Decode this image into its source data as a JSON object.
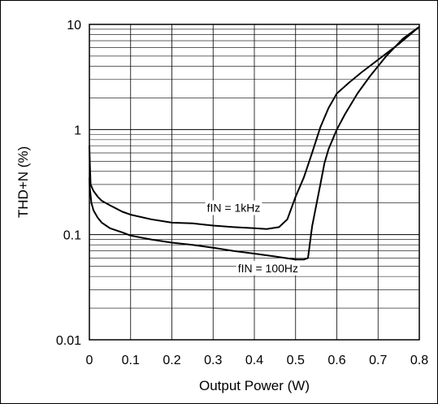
{
  "chart_data": {
    "type": "line",
    "title": "",
    "xlabel": "Output Power (W)",
    "ylabel": "THD+N (%)",
    "x_scale": "linear",
    "y_scale": "log",
    "xlim": [
      0,
      0.8
    ],
    "ylim": [
      0.01,
      10
    ],
    "x_ticks": [
      0,
      0.1,
      0.2,
      0.3,
      0.4,
      0.5,
      0.6,
      0.7,
      0.8
    ],
    "x_tick_labels": [
      "0",
      "0.1",
      "0.2",
      "0.3",
      "0.4",
      "0.5",
      "0.6",
      "0.7",
      "0.8"
    ],
    "y_ticks": [
      0.01,
      0.1,
      1,
      10
    ],
    "y_tick_labels": [
      "0.01",
      "0.1",
      "1",
      "10"
    ],
    "grid": true,
    "legend": "none",
    "series": [
      {
        "name": "fIN = 1kHz",
        "color": "#000000",
        "points": [
          [
            0.0,
            0.7
          ],
          [
            0.001,
            0.5
          ],
          [
            0.003,
            0.3
          ],
          [
            0.01,
            0.26
          ],
          [
            0.02,
            0.23
          ],
          [
            0.03,
            0.21
          ],
          [
            0.05,
            0.19
          ],
          [
            0.08,
            0.165
          ],
          [
            0.1,
            0.155
          ],
          [
            0.15,
            0.14
          ],
          [
            0.2,
            0.13
          ],
          [
            0.25,
            0.128
          ],
          [
            0.3,
            0.122
          ],
          [
            0.35,
            0.118
          ],
          [
            0.4,
            0.115
          ],
          [
            0.43,
            0.113
          ],
          [
            0.46,
            0.118
          ],
          [
            0.48,
            0.14
          ],
          [
            0.5,
            0.23
          ],
          [
            0.52,
            0.35
          ],
          [
            0.54,
            0.6
          ],
          [
            0.56,
            1.05
          ],
          [
            0.58,
            1.6
          ],
          [
            0.6,
            2.2
          ],
          [
            0.63,
            2.8
          ],
          [
            0.66,
            3.5
          ],
          [
            0.7,
            4.6
          ],
          [
            0.75,
            6.5
          ],
          [
            0.8,
            9.5
          ]
        ]
      },
      {
        "name": "fIN = 100Hz",
        "color": "#000000",
        "points": [
          [
            0.0,
            0.35
          ],
          [
            0.001,
            0.28
          ],
          [
            0.005,
            0.2
          ],
          [
            0.01,
            0.17
          ],
          [
            0.02,
            0.145
          ],
          [
            0.03,
            0.13
          ],
          [
            0.05,
            0.115
          ],
          [
            0.08,
            0.105
          ],
          [
            0.1,
            0.098
          ],
          [
            0.15,
            0.09
          ],
          [
            0.2,
            0.084
          ],
          [
            0.25,
            0.08
          ],
          [
            0.3,
            0.075
          ],
          [
            0.35,
            0.07
          ],
          [
            0.4,
            0.066
          ],
          [
            0.45,
            0.062
          ],
          [
            0.5,
            0.058
          ],
          [
            0.52,
            0.058
          ],
          [
            0.53,
            0.06
          ],
          [
            0.54,
            0.12
          ],
          [
            0.56,
            0.3
          ],
          [
            0.57,
            0.48
          ],
          [
            0.58,
            0.65
          ],
          [
            0.6,
            1.0
          ],
          [
            0.62,
            1.4
          ],
          [
            0.65,
            2.2
          ],
          [
            0.68,
            3.2
          ],
          [
            0.72,
            5.0
          ],
          [
            0.76,
            7.3
          ],
          [
            0.8,
            9.5
          ]
        ]
      }
    ],
    "annotations": [
      {
        "text": "fIN = 1kHz",
        "x": 0.285,
        "y": 0.165,
        "anchor": "start",
        "series": 0
      },
      {
        "text": "fIN = 100Hz",
        "x": 0.36,
        "y": 0.044,
        "anchor": "start",
        "series": 1
      }
    ]
  }
}
